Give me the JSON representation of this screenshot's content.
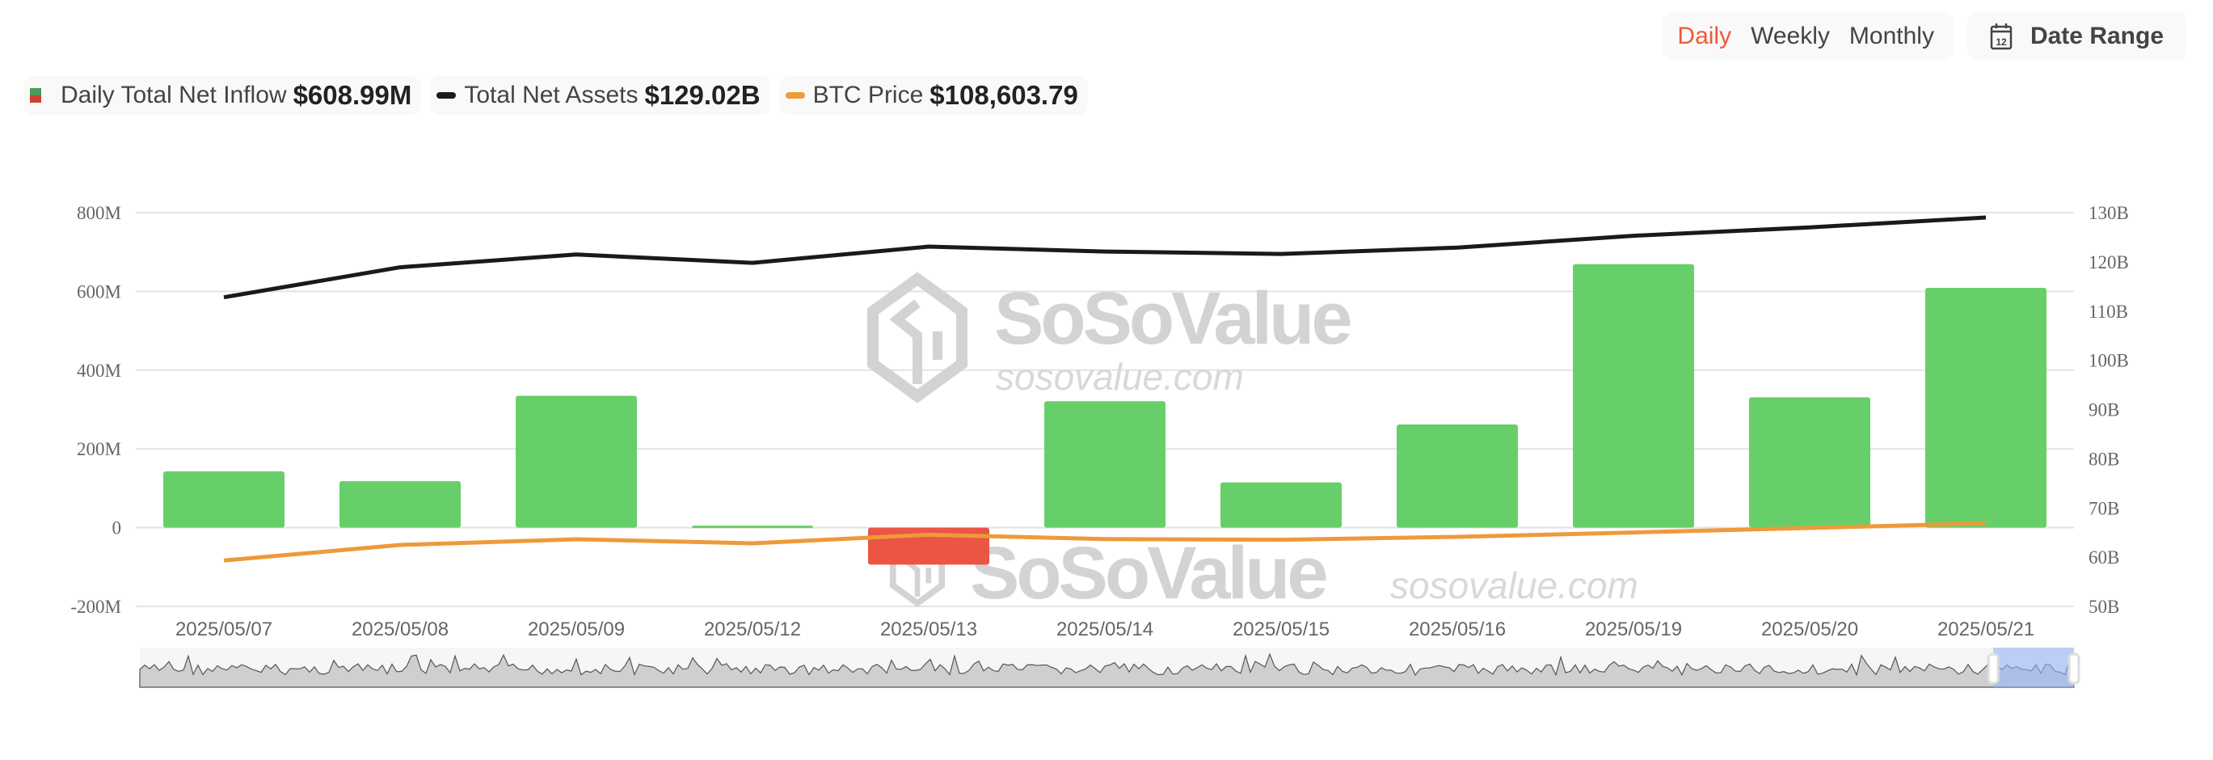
{
  "controls": {
    "periods": [
      "Daily",
      "Weekly",
      "Monthly"
    ],
    "active_period": "Daily",
    "date_range_label": "Date Range",
    "calendar_icon_text": "12"
  },
  "legend": [
    {
      "label": "Daily Total Net Inflow",
      "value": "$608.99M",
      "icon": "bar-swatch-icon"
    },
    {
      "label": "Total Net Assets",
      "value": "$129.02B",
      "icon": "line-swatch-icon"
    },
    {
      "label": "BTC Price",
      "value": "$108,603.79",
      "icon": "line-swatch-icon"
    }
  ],
  "watermark": {
    "brand": "SoSoValue",
    "site": "sosovalue.com"
  },
  "colors": {
    "positive": "#67cf69",
    "negative": "#eb5545",
    "assets": "#1a1a1a",
    "btc": "#ee9a3a",
    "accent": "#ee5a36",
    "grid": "#e3e3e3"
  },
  "chart_data": {
    "type": "bar",
    "categories": [
      "2025/05/07",
      "2025/05/08",
      "2025/05/09",
      "2025/05/12",
      "2025/05/13",
      "2025/05/14",
      "2025/05/15",
      "2025/05/16",
      "2025/05/19",
      "2025/05/20",
      "2025/05/21"
    ],
    "series": [
      {
        "name": "Daily Total Net Inflow",
        "type": "bar",
        "axis": "left",
        "unit": "USD millions",
        "values": [
          143,
          118,
          335,
          5,
          -94,
          321,
          115,
          262,
          669,
          331,
          608.99
        ]
      },
      {
        "name": "Total Net Assets",
        "type": "line",
        "axis": "right",
        "unit": "USD billions",
        "values": [
          112.8,
          118.9,
          121.5,
          119.8,
          123.1,
          122.1,
          121.6,
          122.9,
          125.3,
          127.0,
          129.02
        ]
      },
      {
        "name": "BTC Price",
        "type": "line",
        "axis": "hidden",
        "unit": "USD",
        "values": [
          96800,
          101750,
          103550,
          102260,
          104980,
          103620,
          103390,
          104310,
          105700,
          107130,
          108603.79
        ]
      }
    ],
    "left_axis": {
      "range": [
        -200,
        800
      ],
      "ticks": [
        "-200M",
        "0",
        "200M",
        "400M",
        "600M",
        "800M"
      ],
      "tick_values": [
        -200,
        0,
        200,
        400,
        600,
        800
      ]
    },
    "right_axis": {
      "range": [
        50,
        130
      ],
      "ticks": [
        "50B",
        "60B",
        "70B",
        "80B",
        "90B",
        "100B",
        "110B",
        "120B",
        "130B"
      ],
      "tick_values": [
        50,
        60,
        70,
        80,
        90,
        100,
        110,
        120,
        130
      ]
    },
    "hidden_price_axis_range": [
      82260,
      207130
    ],
    "grid": true,
    "legend_position": "top-left",
    "navigator": {
      "selected_fraction": [
        0.975,
        1.0
      ]
    }
  }
}
